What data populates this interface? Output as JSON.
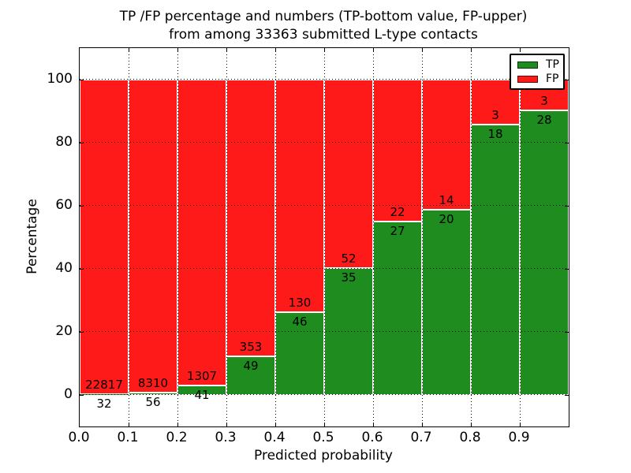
{
  "figure": {
    "title_line1": "TP /FP percentage and numbers (TP-bottom value, FP-upper)",
    "title_line2": "from among 33363 submitted L-type contacts"
  },
  "chart_data": {
    "type": "bar",
    "stacked": true,
    "normalized_to_percent": 100,
    "title": "TP /FP percentage and numbers (TP-bottom value, FP-upper) from among 33363 submitted L-type contacts",
    "xlabel": "Predicted probability",
    "ylabel": "Percentage",
    "total_contacts": 33363,
    "bins": [
      "0.0-0.1",
      "0.1-0.2",
      "0.2-0.3",
      "0.3-0.4",
      "0.4-0.5",
      "0.5-0.6",
      "0.6-0.7",
      "0.7-0.8",
      "0.8-0.9",
      "0.9-1.0"
    ],
    "x_tick_labels": [
      "0.0",
      "0.1",
      "0.2",
      "0.3",
      "0.4",
      "0.5",
      "0.6",
      "0.7",
      "0.8",
      "0.9"
    ],
    "y_tick_values": [
      0,
      20,
      40,
      60,
      80,
      100
    ],
    "xlim": [
      0.0,
      1.0
    ],
    "ylim": [
      -10,
      110
    ],
    "grid": {
      "visible": true,
      "style": "dotted",
      "color": "#000000"
    },
    "series": [
      {
        "name": "TP",
        "color": "#1e8c1e",
        "counts": [
          32,
          56,
          41,
          49,
          46,
          35,
          27,
          20,
          18,
          28
        ]
      },
      {
        "name": "FP",
        "color": "#ff1a1a",
        "counts": [
          22817,
          8310,
          1307,
          353,
          130,
          52,
          22,
          14,
          3,
          3
        ]
      }
    ],
    "tp_percent_heights": [
      0.14,
      0.67,
      3.04,
      12.19,
      26.14,
      40.23,
      55.1,
      58.82,
      85.71,
      90.32
    ],
    "bar_edge_color": "#ffffff",
    "legend": {
      "position": "upper right",
      "labels": [
        "TP",
        "FP"
      ]
    }
  }
}
